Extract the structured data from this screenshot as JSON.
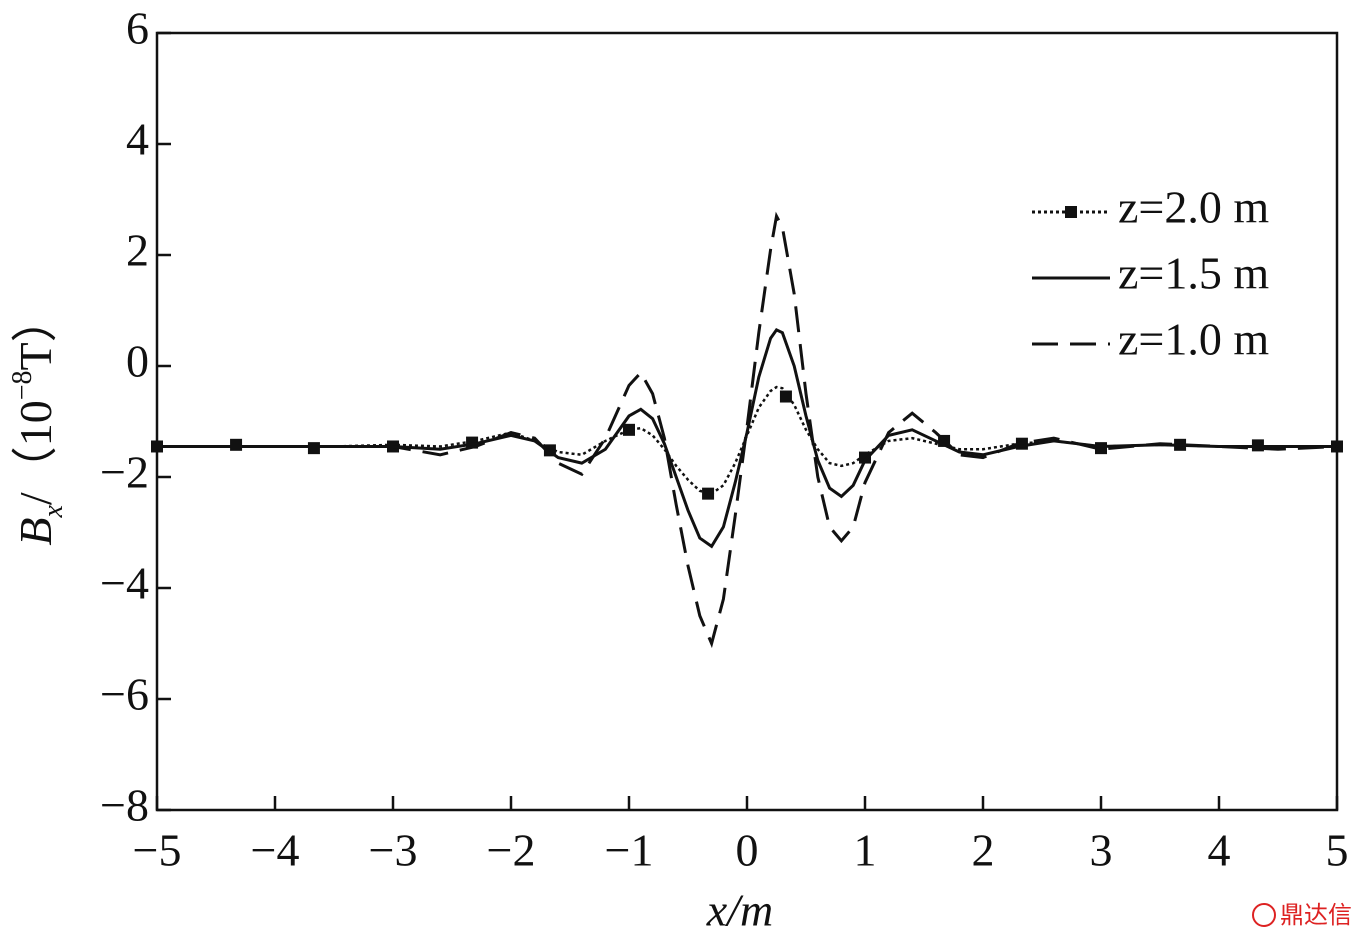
{
  "chart_data": {
    "type": "line",
    "ylabel": [
      "B",
      "x",
      "/（10",
      "−8",
      "T）"
    ],
    "xlabel": "x/m",
    "watermark": "鼎达信",
    "legend": "upper right",
    "xlim": [
      -5,
      5
    ],
    "ylim": [
      -8,
      6
    ],
    "xticks": [
      {
        "value": -5,
        "label": "−5"
      },
      {
        "value": -4,
        "label": "−4"
      },
      {
        "value": -3,
        "label": "−3"
      },
      {
        "value": -2,
        "label": "−2"
      },
      {
        "value": -1,
        "label": "−1"
      },
      0,
      1,
      2,
      3,
      4,
      5
    ],
    "yticks": [
      {
        "value": -8,
        "label": "−8"
      },
      {
        "value": -6,
        "label": "−6"
      },
      {
        "value": -4,
        "label": "−4"
      },
      {
        "value": -2,
        "label": "−2"
      },
      0,
      2,
      4,
      6
    ],
    "x": [
      -5,
      -4.5,
      -4,
      -3.5,
      -3,
      -2.6,
      -2.3,
      -2,
      -1.8,
      -1.6,
      -1.4,
      -1.2,
      -1.0,
      -0.9,
      -0.8,
      -0.7,
      -0.6,
      -0.5,
      -0.4,
      -0.3,
      -0.2,
      -0.1,
      0,
      0.1,
      0.2,
      0.25,
      0.3,
      0.4,
      0.5,
      0.6,
      0.7,
      0.8,
      0.9,
      1.0,
      1.2,
      1.4,
      1.6,
      1.8,
      2.0,
      2.3,
      2.6,
      3,
      3.5,
      4,
      4.5,
      5
    ],
    "series": [
      {
        "name": "z=2.0 m",
        "color": "#111111",
        "dash": "dotted",
        "values": [
          -1.45,
          -1.45,
          -1.45,
          -1.45,
          -1.42,
          -1.45,
          -1.35,
          -1.2,
          -1.35,
          -1.55,
          -1.6,
          -1.35,
          -1.15,
          -1.12,
          -1.25,
          -1.5,
          -1.8,
          -2.05,
          -2.25,
          -2.3,
          -2.15,
          -1.75,
          -1.25,
          -0.75,
          -0.45,
          -0.38,
          -0.4,
          -0.7,
          -1.15,
          -1.5,
          -1.75,
          -1.8,
          -1.75,
          -1.6,
          -1.35,
          -1.3,
          -1.4,
          -1.5,
          -1.5,
          -1.4,
          -1.35,
          -1.45,
          -1.42,
          -1.45,
          -1.45,
          -1.45
        ],
        "markers": {
          "x": [
            -5,
            -4.33,
            -3.67,
            -3,
            -2.33,
            -1.67,
            -1,
            -0.33,
            0.33,
            1,
            1.67,
            2.33,
            3,
            3.67,
            4.33,
            5
          ],
          "values": [
            -1.45,
            -1.42,
            -1.48,
            -1.45,
            -1.38,
            -1.52,
            -1.15,
            -2.3,
            -0.55,
            -1.65,
            -1.35,
            -1.4,
            -1.48,
            -1.42,
            -1.43,
            -1.45
          ]
        }
      },
      {
        "name": "z=1.5 m",
        "color": "#111111",
        "dash": "solid",
        "values": [
          -1.45,
          -1.45,
          -1.45,
          -1.45,
          -1.45,
          -1.5,
          -1.4,
          -1.25,
          -1.35,
          -1.65,
          -1.75,
          -1.5,
          -0.9,
          -0.78,
          -0.95,
          -1.4,
          -2.0,
          -2.6,
          -3.1,
          -3.25,
          -2.9,
          -2.1,
          -1.2,
          -0.2,
          0.5,
          0.65,
          0.6,
          0,
          -0.9,
          -1.7,
          -2.2,
          -2.35,
          -2.15,
          -1.7,
          -1.25,
          -1.15,
          -1.35,
          -1.55,
          -1.6,
          -1.45,
          -1.35,
          -1.45,
          -1.42,
          -1.45,
          -1.45,
          -1.45
        ]
      },
      {
        "name": "z=1.0 m",
        "color": "#111111",
        "dash": "dashed",
        "values": [
          -1.45,
          -1.45,
          -1.45,
          -1.45,
          -1.45,
          -1.6,
          -1.45,
          -1.2,
          -1.3,
          -1.75,
          -1.95,
          -1.3,
          -0.35,
          -0.12,
          -0.5,
          -1.3,
          -2.5,
          -3.6,
          -4.5,
          -5.0,
          -4.2,
          -2.7,
          -1.1,
          0.6,
          2.1,
          2.7,
          2.5,
          1.3,
          -0.5,
          -2.0,
          -2.9,
          -3.15,
          -2.9,
          -2.1,
          -1.2,
          -0.85,
          -1.2,
          -1.6,
          -1.65,
          -1.4,
          -1.3,
          -1.5,
          -1.4,
          -1.45,
          -1.5,
          -1.45
        ]
      }
    ]
  }
}
